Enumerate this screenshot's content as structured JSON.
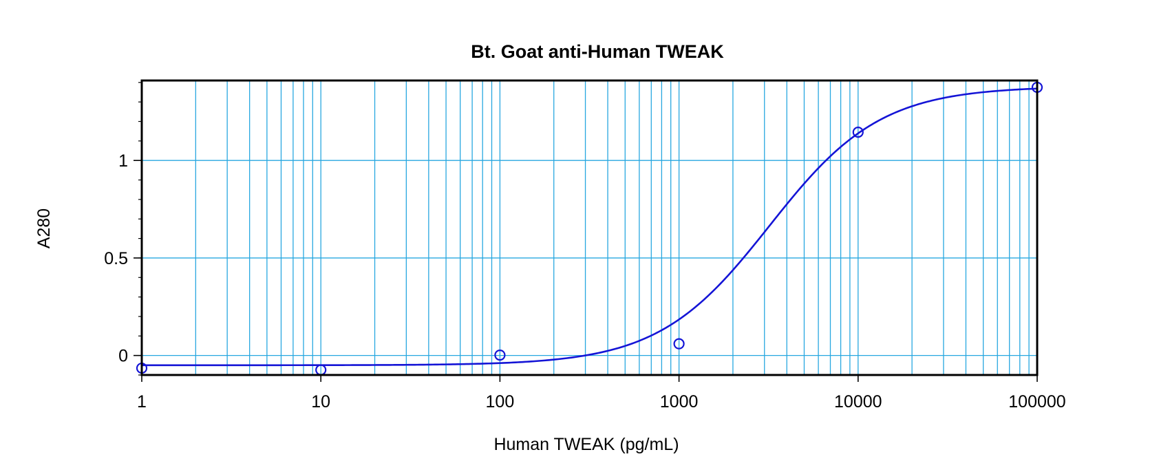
{
  "chart_data": {
    "type": "scatter",
    "title": "Bt. Goat anti-Human TWEAK",
    "xlabel": "Human TWEAK (pg/mL)",
    "ylabel": "A280",
    "xscale": "log",
    "xlim": [
      1,
      100000
    ],
    "ylim": [
      -0.1,
      1.41
    ],
    "grid": true,
    "x_ticks": [
      1,
      10,
      100,
      1000,
      10000,
      100000
    ],
    "x_tick_labels": [
      "1",
      "10",
      "100",
      "1000",
      "10000",
      "100000"
    ],
    "y_ticks": [
      0,
      0.5,
      1
    ],
    "y_tick_labels": [
      "0",
      "0.5",
      "1"
    ],
    "series": [
      {
        "x": [
          1,
          10,
          100,
          1000,
          10000,
          100000
        ],
        "y": [
          -0.065,
          -0.074,
          0.002,
          0.06,
          1.145,
          1.375
        ]
      }
    ],
    "fit_curve": {
      "model": "4PL",
      "bottom": -0.05,
      "top": 1.38,
      "ec50": 3200,
      "hill": 1.4
    },
    "colors": {
      "series": "#1414d6",
      "grid": "#27a7e0",
      "frame": "#000000"
    }
  }
}
